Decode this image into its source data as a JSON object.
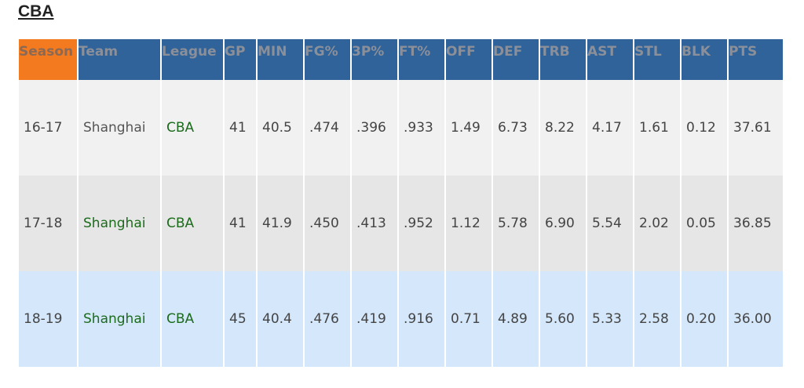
{
  "title": "CBA",
  "table": {
    "header": [
      "Season",
      "Team",
      "League",
      "GP",
      "MIN",
      "FG%",
      "3P%",
      "FT%",
      "OFF",
      "DEF",
      "TRB",
      "AST",
      "STL",
      "BLK",
      "PTS"
    ],
    "rows": [
      [
        "16-17",
        "Shanghai",
        "CBA",
        "41",
        "40.5",
        ".474",
        ".396",
        ".933",
        "1.49",
        "6.73",
        "8.22",
        "4.17",
        "1.61",
        "0.12",
        "37.61"
      ],
      [
        "17-18",
        "Shanghai",
        "CBA",
        "41",
        "41.9",
        ".450",
        ".413",
        ".952",
        "1.12",
        "5.78",
        "6.90",
        "5.54",
        "2.02",
        "0.05",
        "36.85"
      ],
      [
        "18-19",
        "Shanghai",
        "CBA",
        "45",
        "40.4",
        ".476",
        ".419",
        ".916",
        "0.71",
        "4.89",
        "5.60",
        "5.33",
        "2.58",
        "0.20",
        "36.00"
      ]
    ]
  }
}
